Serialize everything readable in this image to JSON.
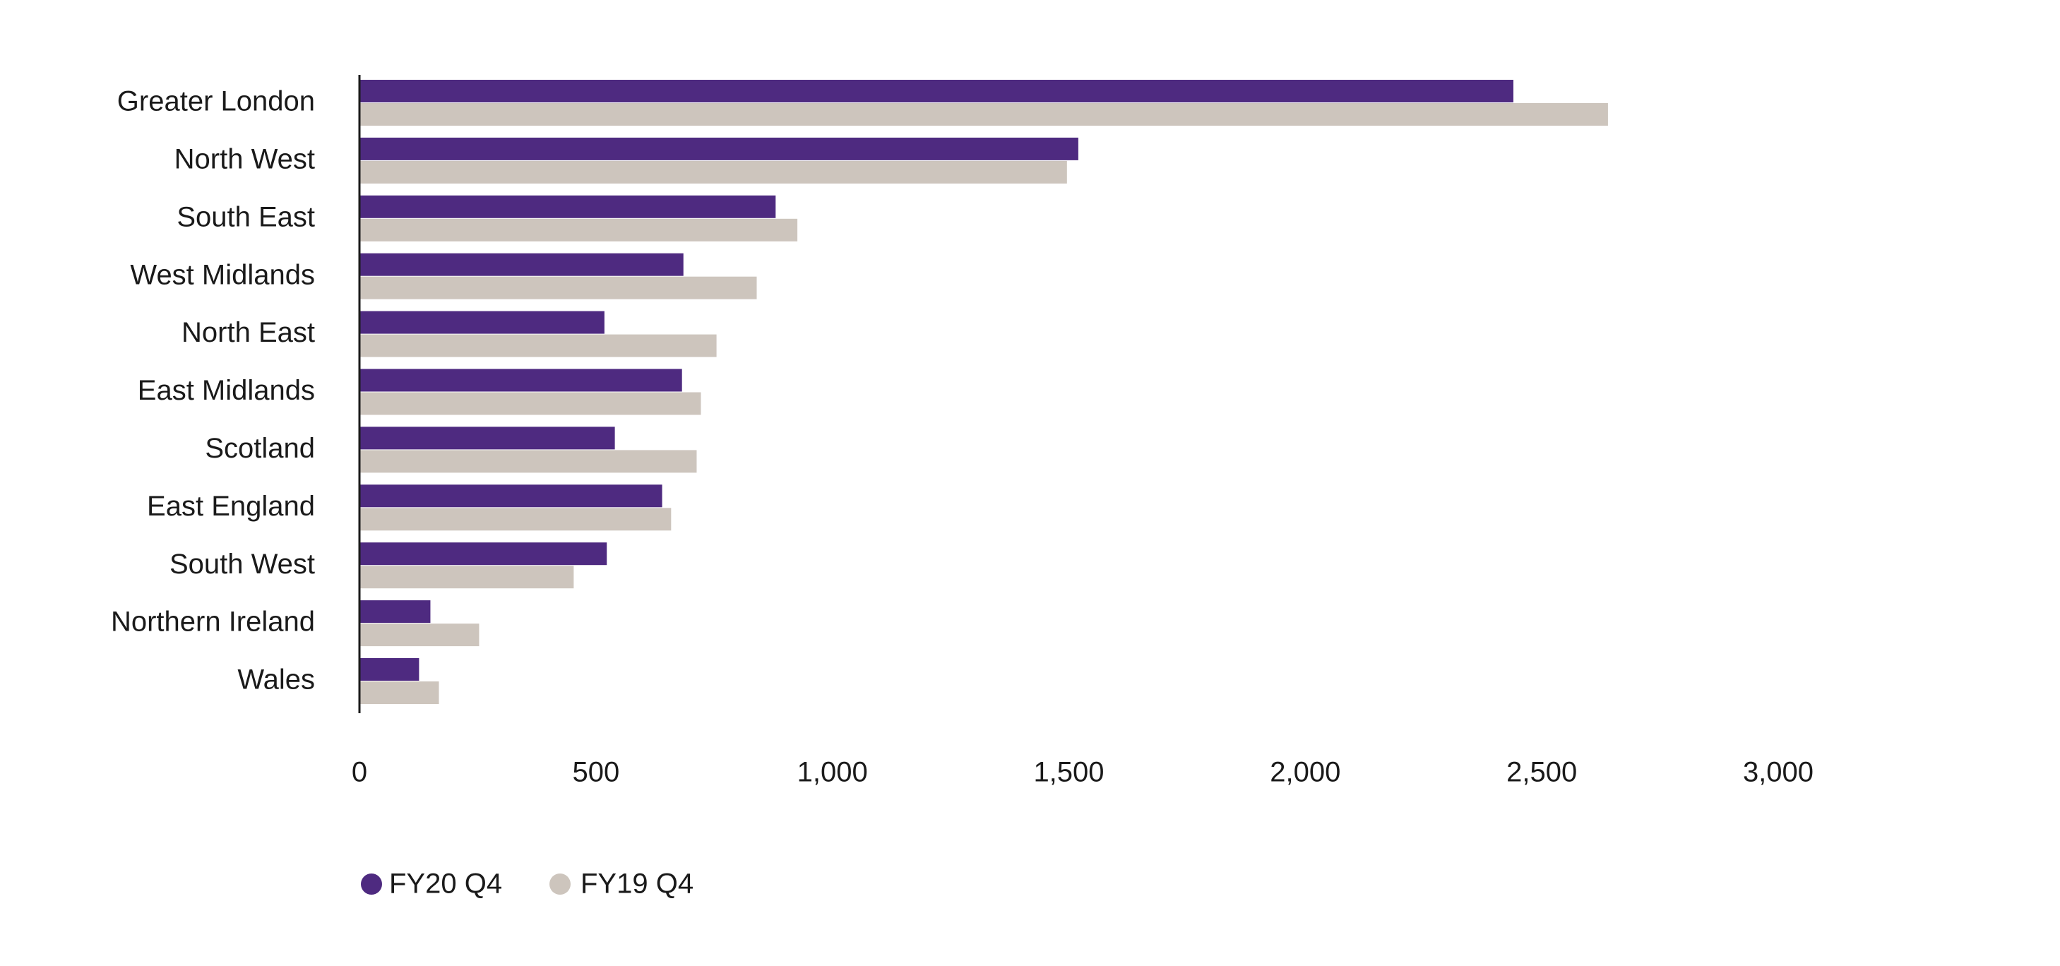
{
  "colors": {
    "fy20": "#4e2a80",
    "fy19": "#cdc5bd",
    "axis": "#1a1a1a"
  },
  "chart_data": {
    "type": "bar",
    "orientation": "horizontal",
    "categories": [
      "Greater London",
      "North West",
      "South East",
      "West Midlands",
      "North East",
      "East Midlands",
      "Scotland",
      "East England",
      "South West",
      "Northern Ireland",
      "Wales"
    ],
    "series": [
      {
        "name": "FY20 Q4",
        "color": "#4e2a80",
        "values": [
          2440,
          1520,
          880,
          685,
          518,
          682,
          540,
          640,
          523,
          150,
          126
        ]
      },
      {
        "name": "FY19 Q4",
        "color": "#cdc5bd",
        "values": [
          2640,
          1496,
          926,
          840,
          755,
          722,
          713,
          659,
          453,
          253,
          168
        ]
      }
    ],
    "xlim": [
      0,
      3000
    ],
    "ticks": [
      "0",
      "500",
      "1,000",
      "1,500",
      "2,000",
      "2,500",
      "3,000"
    ],
    "tick_values": [
      0,
      500,
      1000,
      1500,
      2000,
      2500,
      3000
    ],
    "grid": false,
    "legend_position": "bottom-left"
  }
}
